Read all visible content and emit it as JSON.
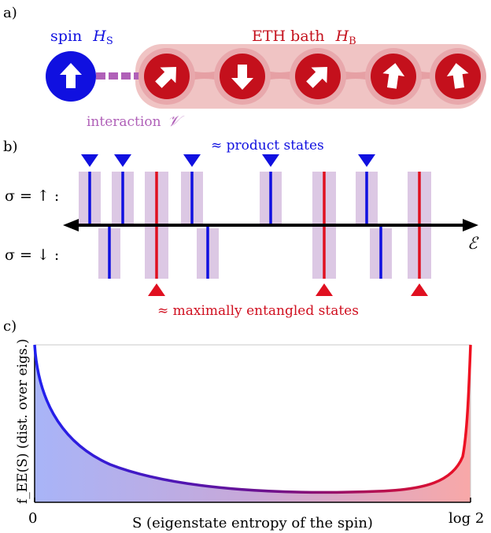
{
  "panel_a": {
    "label": "a)",
    "spin_label": "spin",
    "spin_symbol": "H",
    "spin_sub": "S",
    "bath_label": "ETH bath",
    "bath_symbol": "H",
    "bath_sub": "B",
    "interaction_label": "interaction",
    "interaction_symbol": "𝒱",
    "spin_color": "#1010e0",
    "bath_color": "#c4101c",
    "interaction_color": "#b060b8",
    "bath_arrows": [
      "up-right",
      "down",
      "up-right",
      "up",
      "up"
    ]
  },
  "panel_b": {
    "label": "b)",
    "top_note": "≈ product states",
    "bottom_note": "≈ maximally entangled states",
    "row_up_label": "σ = ↑ :",
    "row_down_label": "σ = ↓ :",
    "axis_label": "ℰ",
    "levels": [
      {
        "row": "up",
        "color": "blue",
        "marker": true
      },
      {
        "row": "down",
        "color": "blue",
        "marker": false
      },
      {
        "row": "up",
        "color": "blue",
        "marker": true
      },
      {
        "row": "both",
        "color": "red",
        "marker": true
      },
      {
        "row": "up",
        "color": "blue",
        "marker": true
      },
      {
        "row": "down",
        "color": "blue",
        "marker": false
      },
      {
        "row": "up",
        "color": "blue",
        "marker": true
      },
      {
        "row": "both",
        "color": "red",
        "marker": true
      },
      {
        "row": "up",
        "color": "blue",
        "marker": true
      },
      {
        "row": "down",
        "color": "blue",
        "marker": false
      },
      {
        "row": "both",
        "color": "red",
        "marker": true
      }
    ]
  },
  "panel_c": {
    "label": "c)",
    "ylabel": "f_EE(S) (dist. over eigs.)",
    "xlabel": "S (eigenstate entropy of the spin)",
    "x_min_label": "0",
    "x_max_label": "log 2"
  }
}
